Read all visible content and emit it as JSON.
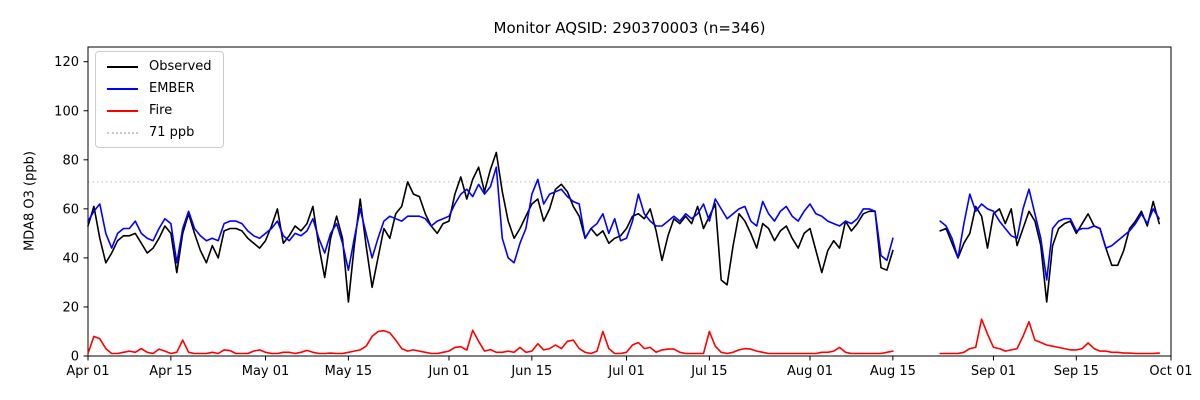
{
  "title": "Monitor AQSID: 290370003 (n=346)",
  "axes": {
    "ylabel": "MDA8 O3 (ppb)",
    "xlabel": "",
    "y_ticks": [
      0,
      20,
      40,
      60,
      80,
      100,
      120
    ],
    "x_ticks": [
      {
        "day": 0,
        "label": "Apr 01"
      },
      {
        "day": 14,
        "label": "Apr 15"
      },
      {
        "day": 30,
        "label": "May 01"
      },
      {
        "day": 44,
        "label": "May 15"
      },
      {
        "day": 61,
        "label": "Jun 01"
      },
      {
        "day": 75,
        "label": "Jun 15"
      },
      {
        "day": 91,
        "label": "Jul 01"
      },
      {
        "day": 105,
        "label": "Jul 15"
      },
      {
        "day": 122,
        "label": "Aug 01"
      },
      {
        "day": 136,
        "label": "Aug 15"
      },
      {
        "day": 153,
        "label": "Sep 01"
      },
      {
        "day": 167,
        "label": "Sep 15"
      },
      {
        "day": 183,
        "label": "Oct 01"
      }
    ],
    "xlim": [
      0,
      183
    ],
    "ylim": [
      0,
      126
    ]
  },
  "threshold": {
    "value": 71,
    "label": "71 ppb",
    "color": "#c8c8c8"
  },
  "legend": [
    {
      "label": "Observed",
      "color": "#000000",
      "style": "solid"
    },
    {
      "label": "EMBER",
      "color": "#0000ff",
      "style": "solid"
    },
    {
      "label": "Fire",
      "color": "#ff0000",
      "style": "solid"
    },
    {
      "label": "71 ppb",
      "color": "#c8c8c8",
      "style": "dotted"
    }
  ],
  "chart_data": {
    "type": "line",
    "title": "Monitor AQSID: 290370003 (n=346)",
    "xlabel": "",
    "ylabel": "MDA8 O3 (ppb)",
    "x_unit": "days since Apr 01 (daily values; null = missing data Aug 16-22)",
    "xlim": [
      0,
      183
    ],
    "ylim": [
      0,
      126
    ],
    "grid": false,
    "legend_position": "upper left",
    "threshold_line": {
      "value": 71,
      "label": "71 ppb",
      "style": "dotted",
      "color": "#c8c8c8"
    },
    "series": [
      {
        "name": "Observed",
        "color": "#000000",
        "values": [
          53,
          61,
          48,
          38,
          42,
          47,
          49,
          49,
          50,
          46,
          42,
          44,
          48,
          53,
          50,
          34,
          50,
          58,
          50,
          43,
          38,
          45,
          40,
          51,
          52,
          52,
          51,
          48,
          46,
          44,
          47,
          53,
          60,
          46,
          49,
          53,
          51,
          54,
          61,
          45,
          32,
          48,
          57,
          48,
          22,
          45,
          64,
          45,
          28,
          40,
          52,
          48,
          58,
          61,
          71,
          66,
          65,
          58,
          53,
          50,
          54,
          55,
          66,
          73,
          64,
          72,
          77,
          67,
          76,
          83,
          67,
          55,
          48,
          52,
          57,
          62,
          64,
          55,
          60,
          68,
          70,
          67,
          61,
          57,
          48,
          52,
          49,
          51,
          46,
          48,
          49,
          52,
          57,
          58,
          56,
          60,
          51,
          39,
          49,
          56,
          54,
          57,
          54,
          61,
          52,
          57,
          62,
          31,
          29,
          45,
          58,
          55,
          50,
          44,
          54,
          52,
          47,
          51,
          53,
          48,
          44,
          50,
          52,
          43,
          34,
          43,
          47,
          44,
          55,
          51,
          54,
          58,
          59,
          59,
          36,
          35,
          43,
          null,
          null,
          null,
          null,
          null,
          null,
          null,
          51,
          52,
          46,
          40,
          46,
          50,
          61,
          57,
          44,
          58,
          60,
          54,
          60,
          45,
          52,
          59,
          55,
          45,
          22,
          45,
          52,
          54,
          55,
          50,
          54,
          58,
          53,
          52,
          44,
          37,
          37,
          43,
          52,
          55,
          59,
          53,
          63,
          54
        ]
      },
      {
        "name": "EMBER",
        "color": "#0000ff",
        "values": [
          55,
          59,
          62,
          50,
          44,
          50,
          52,
          52,
          55,
          50,
          48,
          47,
          52,
          56,
          54,
          38,
          52,
          59,
          52,
          49,
          47,
          48,
          47,
          54,
          55,
          55,
          54,
          51,
          49,
          48,
          50,
          52,
          55,
          49,
          47,
          50,
          49,
          51,
          56,
          48,
          42,
          50,
          54,
          46,
          35,
          48,
          60,
          50,
          40,
          48,
          55,
          57,
          56,
          55,
          57,
          57,
          57,
          56,
          53,
          55,
          56,
          57,
          62,
          66,
          68,
          65,
          70,
          66,
          69,
          77,
          48,
          40,
          38,
          46,
          52,
          66,
          72,
          62,
          66,
          67,
          68,
          65,
          63,
          62,
          48,
          52,
          54,
          58,
          50,
          56,
          47,
          48,
          55,
          66,
          58,
          55,
          53,
          53,
          55,
          57,
          55,
          58,
          56,
          58,
          62,
          55,
          64,
          60,
          56,
          58,
          60,
          61,
          55,
          53,
          63,
          58,
          55,
          59,
          61,
          57,
          55,
          59,
          62,
          58,
          57,
          55,
          54,
          53,
          55,
          54,
          56,
          60,
          60,
          59,
          41,
          39,
          48,
          null,
          null,
          null,
          null,
          null,
          null,
          null,
          55,
          53,
          48,
          40,
          54,
          66,
          59,
          62,
          60,
          59,
          55,
          52,
          49,
          48,
          60,
          68,
          58,
          48,
          31,
          52,
          55,
          56,
          56,
          51,
          52,
          52,
          53,
          52,
          44,
          45,
          47,
          49,
          51,
          54,
          58,
          54,
          60,
          56
        ]
      },
      {
        "name": "Fire",
        "color": "#ff0000",
        "values": [
          1,
          8,
          7,
          3,
          1,
          1,
          1.5,
          2,
          1.5,
          3,
          1.5,
          1,
          2.8,
          2,
          1,
          1.5,
          6.5,
          1.5,
          1,
          1,
          1,
          1.5,
          1,
          2.5,
          2.2,
          1,
          1,
          1,
          2,
          2.5,
          1.5,
          1,
          1,
          1.5,
          1.5,
          1,
          1.5,
          2.3,
          1.5,
          1,
          1,
          1.2,
          1,
          1,
          1.5,
          2,
          2.5,
          4,
          8,
          10,
          10.3,
          9.5,
          6.5,
          3,
          2,
          2.5,
          2,
          1.5,
          1,
          1,
          1.5,
          2,
          3.5,
          3.8,
          2.4,
          10.5,
          6,
          2,
          2.6,
          1.5,
          1.5,
          2,
          1.5,
          3.5,
          1.5,
          2,
          5,
          2.5,
          3,
          4.5,
          3,
          6,
          6.5,
          3,
          1.5,
          1,
          2,
          10,
          3,
          1,
          1,
          1.5,
          4.5,
          5.5,
          3,
          3.5,
          1.5,
          2.5,
          2.8,
          2.8,
          1.5,
          1,
          1,
          1,
          1,
          10,
          4,
          1.5,
          1,
          1.5,
          2.5,
          3,
          2.8,
          2,
          1.5,
          1,
          1,
          1,
          1,
          1,
          1,
          1,
          1,
          1,
          1.5,
          1.5,
          2,
          3.5,
          1.5,
          1,
          1,
          1,
          1,
          1,
          1,
          1.5,
          2,
          null,
          null,
          null,
          null,
          null,
          null,
          null,
          1,
          1,
          1,
          1,
          1.5,
          3,
          3.5,
          15,
          9,
          3.5,
          3,
          2,
          2.5,
          3,
          8,
          14,
          6.5,
          5.5,
          4.5,
          4,
          3.5,
          3,
          2.5,
          2.5,
          3,
          5.3,
          3,
          2,
          2,
          1.5,
          1.5,
          1.2,
          1.2,
          1,
          1,
          1,
          1,
          1.2
        ]
      }
    ]
  }
}
